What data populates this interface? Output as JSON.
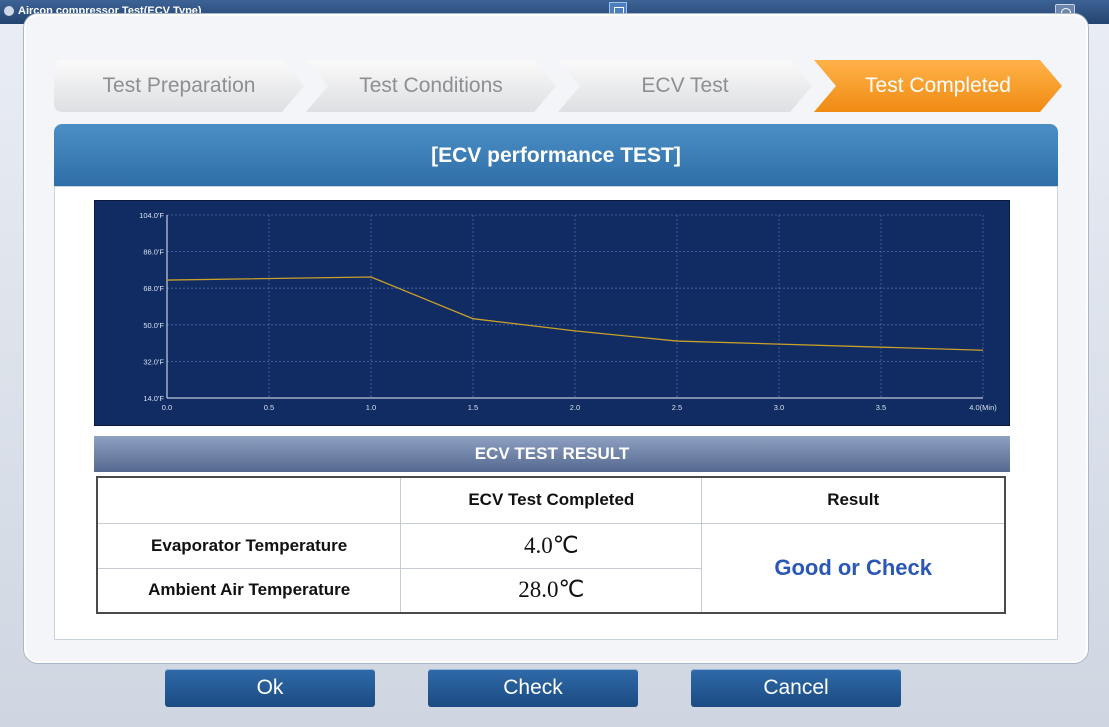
{
  "window": {
    "title": "Aircon compressor Test(ECV Type)"
  },
  "steps": [
    {
      "label": "Test Preparation"
    },
    {
      "label": "Test Conditions"
    },
    {
      "label": "ECV Test"
    },
    {
      "label": "Test Completed"
    }
  ],
  "active_step": 3,
  "section": {
    "title": "[ECV performance TEST]"
  },
  "chart_data": {
    "type": "line",
    "x": [
      0.0,
      1.0,
      1.5,
      2.0,
      2.5,
      3.0,
      3.5,
      4.0
    ],
    "series": [
      {
        "values": [
          72,
          73.5,
          53,
          47,
          42,
          40.5,
          39,
          37.5
        ],
        "color": "#c9a02a"
      }
    ],
    "xticks": [
      "0.0",
      "0.5",
      "1.0",
      "1.5",
      "2.0",
      "2.5",
      "3.0",
      "3.5",
      "4.0(Min)"
    ],
    "yticks": [
      "104.0'F",
      "86.0'F",
      "68.0'F",
      "50.0'F",
      "32.0'F",
      "14.0'F"
    ],
    "xlim": [
      0,
      4
    ],
    "ylim": [
      14,
      104
    ],
    "grid": true,
    "background": "#112c63"
  },
  "result": {
    "header": "ECV TEST RESULT",
    "col_headers": [
      "",
      "ECV Test Completed",
      "Result"
    ],
    "rows": [
      {
        "label": "Evaporator Temperature",
        "value": "4.0℃"
      },
      {
        "label": "Ambient Air Temperature",
        "value": "28.0℃"
      }
    ],
    "outcome": "Good or Check"
  },
  "buttons": {
    "ok": "Ok",
    "check": "Check",
    "cancel": "Cancel"
  },
  "colors": {
    "accent": "#f08b12",
    "header_blue": "#2f6ea8",
    "button_blue": "#1b4b82",
    "outcome_text": "#2a57b5"
  }
}
